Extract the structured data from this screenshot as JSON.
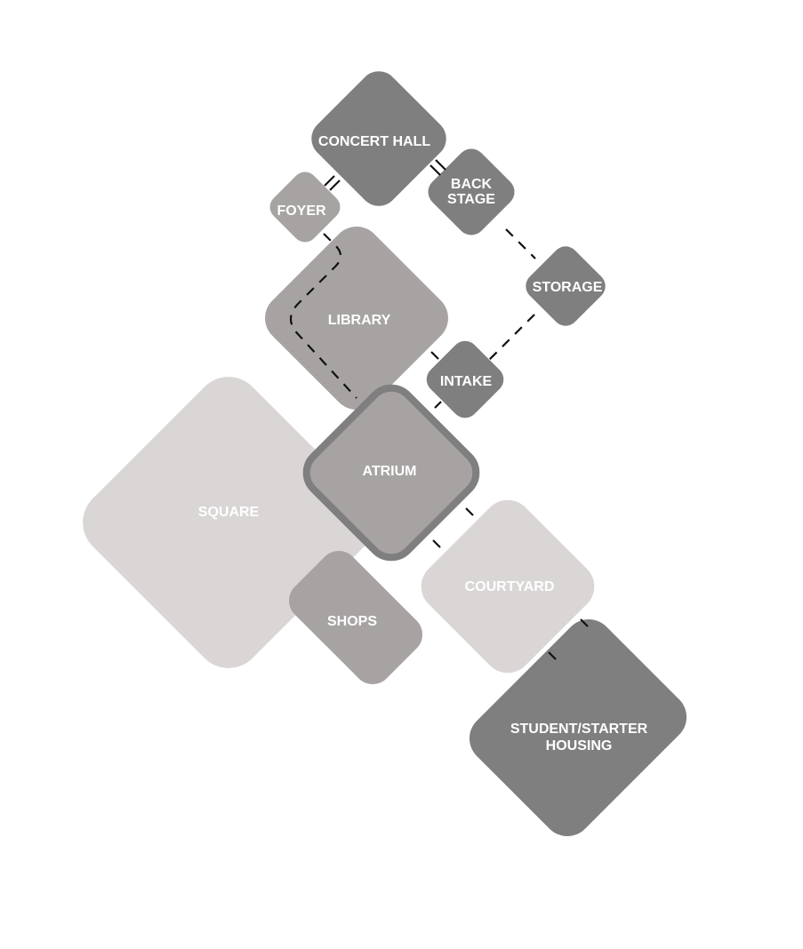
{
  "colors": {
    "light": "#dad6d6",
    "medium": "#a8a3a3",
    "dark": "#7f7f7f",
    "atrium_border": "#7f7f7f",
    "connector": "#111111"
  },
  "spaces": {
    "square": {
      "label": "SQUARE",
      "tone": "light"
    },
    "shops": {
      "label": "SHOPS",
      "tone": "medium"
    },
    "courtyard": {
      "label": "COURTYARD",
      "tone": "light"
    },
    "housing": {
      "label_line1": "STUDENT/STARTER",
      "label_line2": "HOUSING",
      "tone": "dark"
    },
    "library": {
      "label": "LIBRARY",
      "tone": "medium"
    },
    "foyer": {
      "label": "FOYER",
      "tone": "medium"
    },
    "concert_hall": {
      "label": "CONCERT HALL",
      "tone": "dark"
    },
    "back_stage": {
      "label_line1": "BACK",
      "label_line2": "STAGE",
      "tone": "dark"
    },
    "storage": {
      "label": "STORAGE",
      "tone": "dark"
    },
    "intake": {
      "label": "INTAKE",
      "tone": "dark"
    },
    "atrium": {
      "label": "ATRIUM",
      "tone": "medium"
    }
  }
}
